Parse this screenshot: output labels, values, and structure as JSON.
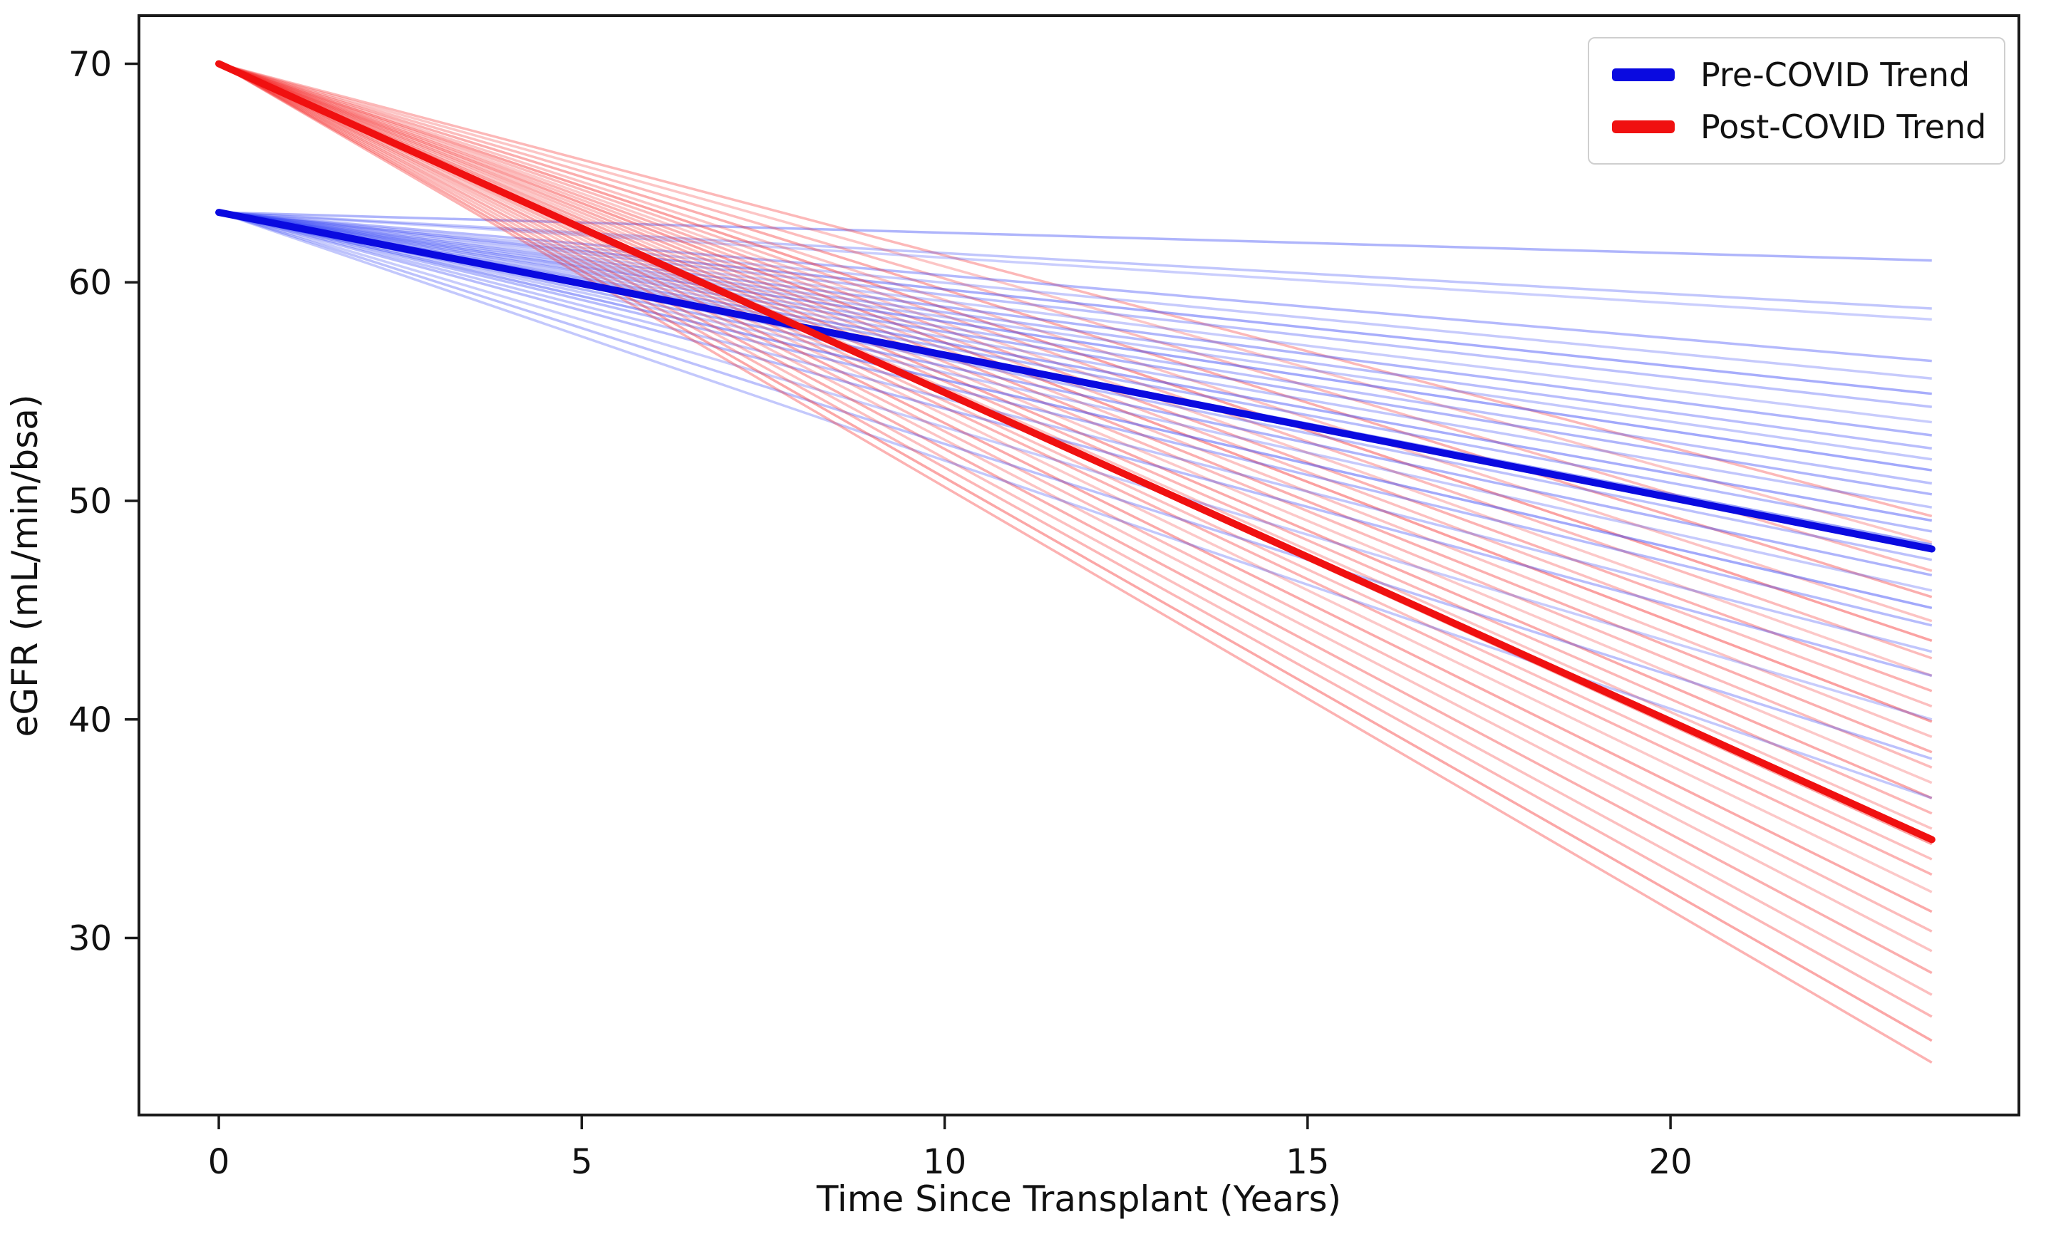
{
  "figure": {
    "background": "#ffffff",
    "text_color": "#111111",
    "axis_color": "#1a1a1a"
  },
  "chart_data": {
    "type": "line",
    "title": "",
    "xlabel": "Time Since Transplant (Years)",
    "ylabel": "eGFR (mL/min/bsa)",
    "xlim": [
      -1.1,
      24.8
    ],
    "ylim": [
      21.9,
      72.2
    ],
    "xticks": [
      0,
      5,
      10,
      15,
      20
    ],
    "yticks": [
      30,
      40,
      50,
      60,
      70
    ],
    "x_start_years": 0,
    "x_end_years": 23.6,
    "grid": false,
    "legend": {
      "position": "upper-right",
      "items": [
        {
          "label": "Pre-COVID Trend",
          "color": "#0a0ae0"
        },
        {
          "label": "Post-COVID Trend",
          "color": "#f01010"
        }
      ]
    },
    "series": [
      {
        "name": "Pre-COVID Trend",
        "color": "#0a0ae0",
        "line_width": 10,
        "opacity": 1,
        "x": [
          0,
          23.6
        ],
        "y": [
          63.2,
          47.8
        ]
      },
      {
        "name": "Post-COVID Trend",
        "color": "#f01010",
        "line_width": 10,
        "opacity": 1,
        "x": [
          0,
          23.6
        ],
        "y": [
          70.0,
          34.5
        ]
      }
    ],
    "trajectories": {
      "pre_covid": {
        "color": "#2233f5",
        "line_width": 3.5,
        "start_egfr": 63.2,
        "end_egfr": [
          61.0,
          58.8,
          58.3,
          56.4,
          55.6,
          54.9,
          54.3,
          53.6,
          53.0,
          52.4,
          51.9,
          51.4,
          50.8,
          50.3,
          49.7,
          49.1,
          48.6,
          48.0,
          47.3,
          46.6,
          45.9,
          45.1,
          44.3,
          43.1,
          42.0,
          40.0,
          38.2,
          36.4
        ],
        "opacity": [
          0.36,
          0.28,
          0.24,
          0.34,
          0.26,
          0.4,
          0.3,
          0.25,
          0.36,
          0.32,
          0.27,
          0.42,
          0.3,
          0.36,
          0.28,
          0.4,
          0.33,
          0.45,
          0.3,
          0.37,
          0.26,
          0.42,
          0.33,
          0.28,
          0.32,
          0.25,
          0.3,
          0.27
        ]
      },
      "post_covid": {
        "color": "#f52222",
        "line_width": 3.5,
        "start_egfr": 70.0,
        "end_egfr": [
          49.3,
          48.1,
          46.8,
          45.6,
          44.5,
          43.6,
          42.8,
          42.0,
          41.3,
          40.6,
          39.9,
          39.2,
          38.5,
          37.8,
          37.1,
          36.4,
          35.7,
          35.0,
          34.3,
          33.6,
          32.9,
          32.1,
          31.2,
          30.3,
          29.4,
          28.4,
          27.4,
          26.4,
          25.3,
          24.3
        ],
        "opacity": [
          0.32,
          0.26,
          0.3,
          0.37,
          0.27,
          0.42,
          0.31,
          0.25,
          0.35,
          0.29,
          0.43,
          0.27,
          0.37,
          0.31,
          0.25,
          0.39,
          0.33,
          0.27,
          0.42,
          0.29,
          0.35,
          0.25,
          0.39,
          0.31,
          0.27,
          0.37,
          0.29,
          0.33,
          0.4,
          0.35
        ]
      }
    }
  }
}
